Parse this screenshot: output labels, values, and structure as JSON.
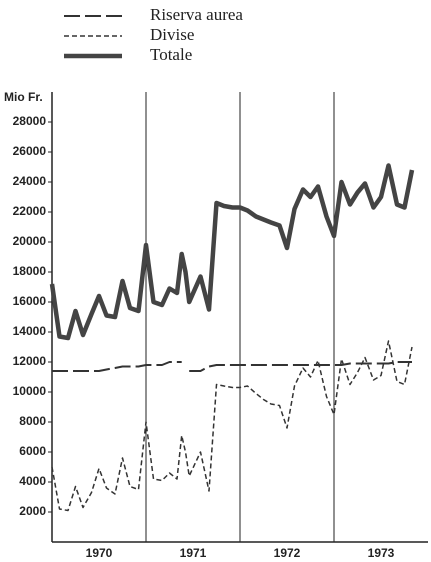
{
  "chart_data": {
    "type": "line",
    "y_label": "Mio Fr.",
    "ylim": [
      0,
      30000
    ],
    "yticks": [
      2000,
      4000,
      6000,
      8000,
      10000,
      12000,
      14000,
      16000,
      18000,
      20000,
      22000,
      24000,
      26000,
      28000
    ],
    "xlim": [
      1970,
      1974
    ],
    "xticks": [
      {
        "value": 1970.5,
        "label": "1970"
      },
      {
        "value": 1971.5,
        "label": "1971"
      },
      {
        "value": 1972.5,
        "label": "1972"
      },
      {
        "value": 1973.5,
        "label": "1973"
      }
    ],
    "xgrid": [
      1971,
      1972,
      1973
    ],
    "grid": false,
    "x": [
      1970.0,
      1970.08,
      1970.17,
      1970.25,
      1970.33,
      1970.42,
      1970.5,
      1970.58,
      1970.67,
      1970.75,
      1970.83,
      1970.92,
      1971.0,
      1971.08,
      1971.17,
      1971.25,
      1971.33,
      1971.38,
      1971.42,
      1971.46,
      1971.58,
      1971.67,
      1971.75,
      1971.83,
      1971.92,
      1972.0,
      1972.08,
      1972.17,
      1972.25,
      1972.33,
      1972.42,
      1972.5,
      1972.58,
      1972.67,
      1972.75,
      1972.83,
      1972.92,
      1973.0,
      1973.08,
      1973.17,
      1973.25,
      1973.33,
      1973.42,
      1973.5,
      1973.58,
      1973.67,
      1973.75,
      1973.83
    ],
    "series": [
      {
        "name": "Riserva aurea",
        "color": "#333333",
        "width": 2,
        "dash": "16 5",
        "values": [
          11400,
          11400,
          11400,
          11400,
          11400,
          11400,
          11400,
          11500,
          11600,
          11700,
          11700,
          11700,
          11800,
          11800,
          11800,
          12000,
          12000,
          12000,
          null,
          11400,
          11400,
          11700,
          11800,
          11800,
          11800,
          11800,
          11800,
          11800,
          11800,
          11800,
          11800,
          11800,
          11800,
          11800,
          11800,
          11800,
          11800,
          11800,
          11800,
          11900,
          11900,
          11900,
          11900,
          11900,
          11900,
          12000,
          12000,
          12000
        ]
      },
      {
        "name": "Divise",
        "color": "#333333",
        "width": 1.5,
        "dash": "5 3",
        "values": [
          5000,
          2200,
          2100,
          3700,
          2300,
          3300,
          4900,
          3600,
          3200,
          5600,
          3700,
          3500,
          8000,
          4200,
          4100,
          4600,
          4200,
          7100,
          6000,
          4400,
          6000,
          3400,
          10500,
          10400,
          10300,
          10300,
          10400,
          9900,
          9500,
          9200,
          9100,
          7600,
          10400,
          11600,
          11000,
          12100,
          9700,
          8500,
          12200,
          10500,
          11300,
          12300,
          10800,
          11100,
          13400,
          10700,
          10500,
          13000
        ]
      },
      {
        "name": "Totale",
        "color": "#444444",
        "width": 4.5,
        "dash": "none",
        "values": [
          17200,
          13700,
          13600,
          15400,
          13800,
          15200,
          16400,
          15100,
          15000,
          17400,
          15600,
          15400,
          19800,
          16000,
          15800,
          16900,
          16600,
          19200,
          18000,
          16000,
          17700,
          15500,
          22600,
          22400,
          22300,
          22300,
          22100,
          21700,
          21500,
          21300,
          21100,
          19600,
          22200,
          23500,
          23000,
          23700,
          21700,
          20400,
          24000,
          22500,
          23300,
          23900,
          22300,
          23000,
          25100,
          22500,
          22300,
          24800
        ]
      }
    ]
  }
}
